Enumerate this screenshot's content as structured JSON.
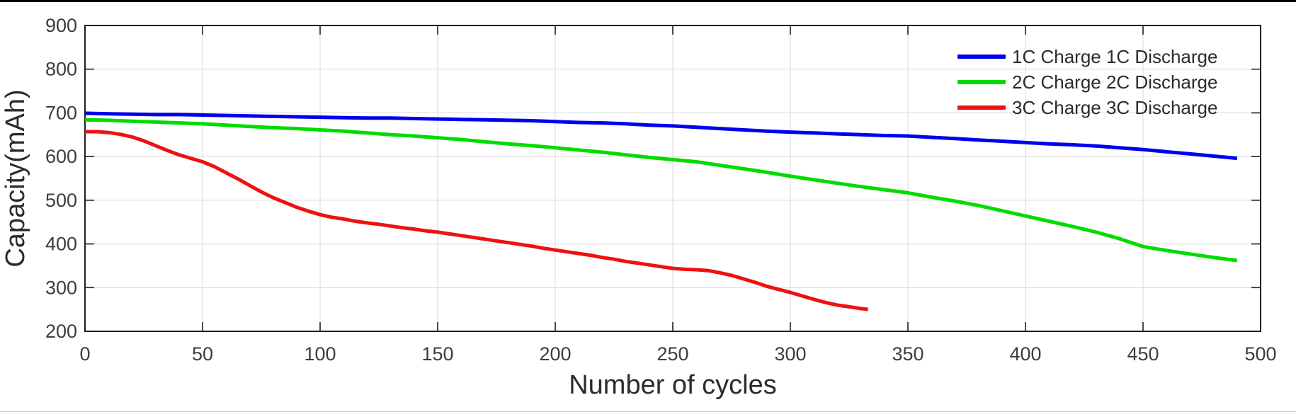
{
  "figure": {
    "background": "#ffffff",
    "top_border_color": "#000000"
  },
  "chart_data": {
    "type": "line",
    "title": "",
    "xlabel": "Number of cycles",
    "ylabel": "Capacity(mAh)",
    "xlim": [
      0,
      500
    ],
    "ylim": [
      200,
      900
    ],
    "xtick_step": 50,
    "ytick_step": 100,
    "grid": true,
    "legend_position": "top-right-inside",
    "axis_color": "#1f1f1f",
    "grid_color": "#d9d9d9",
    "tick_label_color": "#3d3d3d",
    "axis_label_color": "#2b2b2b",
    "series": [
      {
        "name": "1C Charge 1C Discharge",
        "color": "#0000ee",
        "points": [
          [
            0,
            699
          ],
          [
            10,
            698
          ],
          [
            20,
            697
          ],
          [
            30,
            696
          ],
          [
            40,
            696
          ],
          [
            50,
            695
          ],
          [
            60,
            694
          ],
          [
            70,
            693
          ],
          [
            80,
            692
          ],
          [
            90,
            691
          ],
          [
            100,
            690
          ],
          [
            110,
            689
          ],
          [
            120,
            688
          ],
          [
            130,
            688
          ],
          [
            140,
            687
          ],
          [
            150,
            686
          ],
          [
            160,
            685
          ],
          [
            170,
            684
          ],
          [
            180,
            683
          ],
          [
            190,
            682
          ],
          [
            200,
            680
          ],
          [
            210,
            678
          ],
          [
            220,
            677
          ],
          [
            230,
            675
          ],
          [
            240,
            672
          ],
          [
            250,
            670
          ],
          [
            260,
            667
          ],
          [
            270,
            664
          ],
          [
            280,
            661
          ],
          [
            290,
            658
          ],
          [
            300,
            656
          ],
          [
            310,
            654
          ],
          [
            320,
            652
          ],
          [
            330,
            650
          ],
          [
            340,
            648
          ],
          [
            350,
            647
          ],
          [
            360,
            644
          ],
          [
            370,
            641
          ],
          [
            380,
            638
          ],
          [
            390,
            635
          ],
          [
            400,
            632
          ],
          [
            410,
            629
          ],
          [
            420,
            627
          ],
          [
            430,
            624
          ],
          [
            440,
            620
          ],
          [
            450,
            616
          ],
          [
            460,
            611
          ],
          [
            470,
            606
          ],
          [
            480,
            601
          ],
          [
            490,
            596
          ]
        ]
      },
      {
        "name": "2C Charge 2C Discharge",
        "color": "#00dc00",
        "points": [
          [
            0,
            684
          ],
          [
            10,
            683
          ],
          [
            20,
            681
          ],
          [
            30,
            679
          ],
          [
            40,
            677
          ],
          [
            50,
            675
          ],
          [
            60,
            672
          ],
          [
            70,
            669
          ],
          [
            80,
            666
          ],
          [
            90,
            664
          ],
          [
            100,
            661
          ],
          [
            110,
            658
          ],
          [
            120,
            654
          ],
          [
            130,
            650
          ],
          [
            140,
            647
          ],
          [
            150,
            643
          ],
          [
            160,
            639
          ],
          [
            170,
            634
          ],
          [
            180,
            629
          ],
          [
            190,
            625
          ],
          [
            200,
            620
          ],
          [
            210,
            615
          ],
          [
            220,
            610
          ],
          [
            230,
            604
          ],
          [
            240,
            598
          ],
          [
            250,
            593
          ],
          [
            260,
            588
          ],
          [
            270,
            580
          ],
          [
            280,
            572
          ],
          [
            290,
            564
          ],
          [
            300,
            555
          ],
          [
            310,
            547
          ],
          [
            320,
            539
          ],
          [
            330,
            531
          ],
          [
            340,
            524
          ],
          [
            350,
            517
          ],
          [
            360,
            507
          ],
          [
            370,
            498
          ],
          [
            380,
            488
          ],
          [
            390,
            476
          ],
          [
            400,
            464
          ],
          [
            410,
            452
          ],
          [
            420,
            440
          ],
          [
            430,
            427
          ],
          [
            440,
            412
          ],
          [
            450,
            394
          ],
          [
            460,
            385
          ],
          [
            470,
            377
          ],
          [
            480,
            369
          ],
          [
            490,
            362
          ]
        ]
      },
      {
        "name": "3C Charge 3C Discharge",
        "color": "#ee1111",
        "points": [
          [
            0,
            657
          ],
          [
            5,
            657
          ],
          [
            10,
            655
          ],
          [
            15,
            651
          ],
          [
            20,
            645
          ],
          [
            25,
            636
          ],
          [
            30,
            625
          ],
          [
            35,
            614
          ],
          [
            40,
            604
          ],
          [
            45,
            596
          ],
          [
            50,
            588
          ],
          [
            55,
            577
          ],
          [
            60,
            563
          ],
          [
            65,
            549
          ],
          [
            70,
            534
          ],
          [
            75,
            519
          ],
          [
            80,
            506
          ],
          [
            85,
            495
          ],
          [
            90,
            484
          ],
          [
            95,
            475
          ],
          [
            100,
            467
          ],
          [
            105,
            461
          ],
          [
            110,
            457
          ],
          [
            115,
            452
          ],
          [
            120,
            448
          ],
          [
            125,
            445
          ],
          [
            130,
            441
          ],
          [
            135,
            437
          ],
          [
            140,
            434
          ],
          [
            145,
            430
          ],
          [
            150,
            427
          ],
          [
            155,
            423
          ],
          [
            160,
            419
          ],
          [
            165,
            415
          ],
          [
            170,
            411
          ],
          [
            175,
            407
          ],
          [
            180,
            403
          ],
          [
            185,
            399
          ],
          [
            190,
            395
          ],
          [
            195,
            390
          ],
          [
            200,
            386
          ],
          [
            205,
            382
          ],
          [
            210,
            378
          ],
          [
            215,
            374
          ],
          [
            220,
            369
          ],
          [
            225,
            365
          ],
          [
            230,
            360
          ],
          [
            235,
            356
          ],
          [
            240,
            352
          ],
          [
            245,
            348
          ],
          [
            250,
            344
          ],
          [
            255,
            342
          ],
          [
            260,
            341
          ],
          [
            265,
            339
          ],
          [
            270,
            334
          ],
          [
            275,
            328
          ],
          [
            280,
            320
          ],
          [
            285,
            312
          ],
          [
            290,
            303
          ],
          [
            295,
            296
          ],
          [
            300,
            289
          ],
          [
            305,
            281
          ],
          [
            310,
            273
          ],
          [
            315,
            266
          ],
          [
            320,
            260
          ],
          [
            325,
            256
          ],
          [
            330,
            252
          ],
          [
            333,
            250
          ]
        ]
      }
    ]
  }
}
